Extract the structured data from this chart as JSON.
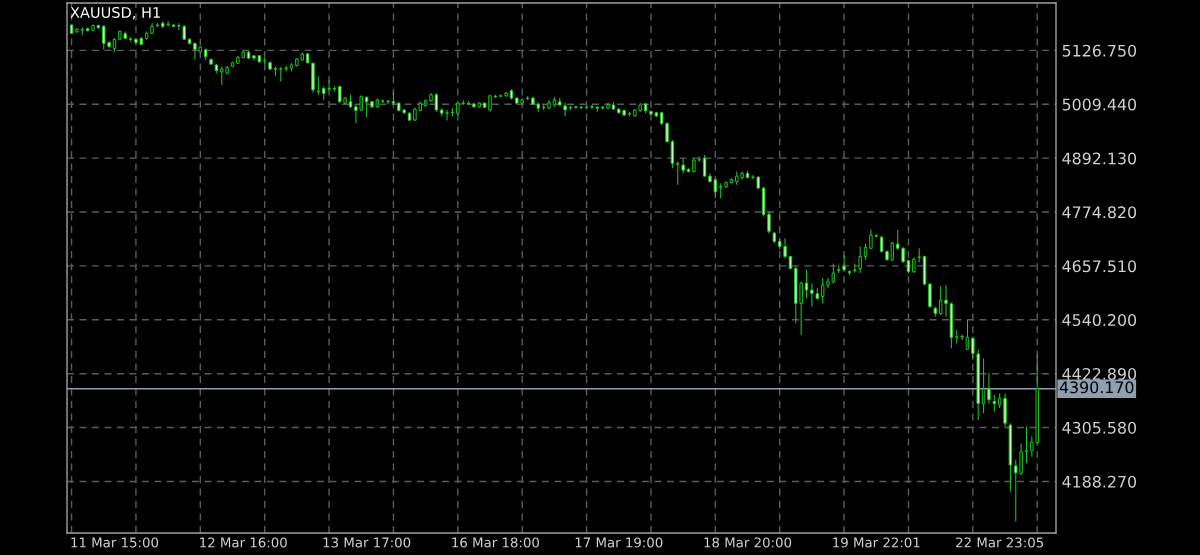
{
  "chart_data": {
    "type": "candlestick",
    "title": "XAUUSD, H1",
    "categories": [
      null,
      null,
      null,
      null,
      null,
      null,
      null,
      null,
      "11 Mar 15:00",
      null,
      null,
      null,
      null,
      null,
      null,
      null,
      null,
      null,
      null,
      null,
      null,
      null,
      null,
      null,
      null,
      null,
      null,
      null,
      null,
      null,
      null,
      null,
      "12 Mar 16:00",
      null,
      null,
      null,
      null,
      null,
      null,
      null,
      null,
      null,
      null,
      null,
      null,
      null,
      null,
      null,
      null,
      null,
      null,
      null,
      null,
      null,
      null,
      "13 Mar 17:00",
      null,
      null,
      null,
      null,
      null,
      null,
      null,
      null,
      null,
      null,
      null,
      null,
      null,
      null,
      null,
      null,
      null,
      null,
      null,
      null,
      null,
      null,
      null,
      "16 Mar 18:00",
      null,
      null,
      null,
      null,
      null,
      null,
      null,
      null,
      null,
      null,
      null,
      null,
      null,
      null,
      null,
      null,
      null,
      null,
      null,
      null,
      null,
      null,
      "17 Mar 19:00",
      null,
      null,
      null,
      null,
      null,
      null,
      null,
      null,
      null,
      null,
      null,
      null,
      null,
      null,
      null,
      null,
      null,
      null,
      null,
      null,
      null,
      null,
      null,
      "18 Mar 20:00",
      null,
      null,
      null,
      null,
      null,
      null,
      null,
      null,
      null,
      null,
      null,
      null,
      null,
      null,
      null,
      null,
      null,
      null,
      null,
      null,
      null,
      null,
      null,
      "19 Mar 22:01",
      null,
      null,
      null,
      null,
      null,
      null,
      null,
      null,
      null,
      null,
      null,
      null,
      null,
      null,
      null,
      null,
      null,
      null,
      null,
      null,
      null,
      null,
      "22 Mar 23:05",
      null,
      null,
      null,
      null,
      null,
      null,
      null
    ],
    "ohlc": [
      [
        5182,
        5184,
        5163,
        5164
      ],
      [
        5167,
        5175,
        5166,
        5173
      ],
      [
        5171,
        5177,
        5160,
        5172
      ],
      [
        5174,
        5176,
        5168,
        5170
      ],
      [
        5171,
        5183,
        5170,
        5181
      ],
      [
        5181,
        5183,
        5174,
        5176
      ],
      [
        5179,
        5182,
        5129,
        5142
      ],
      [
        5144,
        5146,
        5131,
        5135
      ],
      [
        5131,
        5153,
        5124,
        5151
      ],
      [
        5151,
        5170,
        5150,
        5168
      ],
      [
        5163,
        5168,
        5151,
        5153
      ],
      [
        5152,
        5155,
        5146,
        5151
      ],
      [
        5151,
        5153,
        5142,
        5144
      ],
      [
        5153,
        5155,
        5138,
        5140
      ],
      [
        5153,
        5168,
        5150,
        5164
      ],
      [
        5164,
        5186,
        5163,
        5179
      ],
      [
        5181,
        5187,
        5177,
        5182
      ],
      [
        5186,
        5190,
        5175,
        5179
      ],
      [
        5183,
        5190,
        5179,
        5184
      ],
      [
        5182,
        5184,
        5177,
        5179
      ],
      [
        5180,
        5186,
        5171,
        5181
      ],
      [
        5179,
        5182,
        5150,
        5151
      ],
      [
        5151,
        5153,
        5140,
        5142
      ],
      [
        5142,
        5144,
        5107,
        5129
      ],
      [
        5124,
        5136,
        5122,
        5134
      ],
      [
        5128,
        5131,
        5106,
        5113
      ],
      [
        5107,
        5109,
        5095,
        5097
      ],
      [
        5095,
        5097,
        5077,
        5083
      ],
      [
        5080,
        5092,
        5052,
        5086
      ],
      [
        5077,
        5093,
        5075,
        5090
      ],
      [
        5092,
        5102,
        5090,
        5100
      ],
      [
        5099,
        5115,
        5097,
        5112
      ],
      [
        5111,
        5126,
        5110,
        5123
      ],
      [
        5123,
        5126,
        5108,
        5110
      ],
      [
        5115,
        5117,
        5105,
        5110
      ],
      [
        5115,
        5117,
        5100,
        5102
      ],
      [
        5104,
        5110,
        5097,
        5105
      ],
      [
        5100,
        5103,
        5084,
        5086
      ],
      [
        5087,
        5092,
        5071,
        5086
      ],
      [
        5086,
        5090,
        5059,
        5087
      ],
      [
        5087,
        5093,
        5081,
        5088
      ],
      [
        5088,
        5099,
        5081,
        5095
      ],
      [
        5094,
        5110,
        5092,
        5108
      ],
      [
        5106,
        5122,
        5105,
        5119
      ],
      [
        5119,
        5121,
        5099,
        5100
      ],
      [
        5099,
        5100,
        5035,
        5041
      ],
      [
        5037,
        5070,
        5030,
        5038
      ],
      [
        5044,
        5048,
        5019,
        5033
      ],
      [
        5043,
        5062,
        5039,
        5044
      ],
      [
        5044,
        5048,
        5038,
        5043
      ],
      [
        5048,
        5050,
        5013,
        5015
      ],
      [
        5012,
        5025,
        5010,
        5023
      ],
      [
        5015,
        5030,
        5001,
        5004
      ],
      [
        5004,
        5008,
        4968,
        4996
      ],
      [
        4997,
        5029,
        4995,
        5026
      ],
      [
        5025,
        5026,
        4981,
        5015
      ],
      [
        5015,
        5017,
        5001,
        5004
      ],
      [
        5004,
        5022,
        5002,
        5019
      ],
      [
        5016,
        5020,
        5012,
        5017
      ],
      [
        5016,
        5019,
        5010,
        5015
      ],
      [
        5015,
        5037,
        5008,
        5012
      ],
      [
        5012,
        5014,
        4994,
        4996
      ],
      [
        4997,
        4999,
        4989,
        4991
      ],
      [
        4990,
        4992,
        4973,
        4975
      ],
      [
        4975,
        5002,
        4973,
        4999
      ],
      [
        4996,
        5015,
        4995,
        5012
      ],
      [
        5006,
        5020,
        5004,
        5017
      ],
      [
        5017,
        5034,
        5015,
        5030
      ],
      [
        5030,
        5034,
        4993,
        4997
      ],
      [
        4997,
        5001,
        4983,
        4990
      ],
      [
        4990,
        4997,
        4974,
        4991
      ],
      [
        4991,
        5001,
        4983,
        4992
      ],
      [
        4990,
        5013,
        4986,
        5012
      ],
      [
        5012,
        5019,
        5008,
        5011
      ],
      [
        5011,
        5016,
        5008,
        5012
      ],
      [
        5010,
        5013,
        5002,
        5004
      ],
      [
        5004,
        5014,
        5002,
        5012
      ],
      [
        5012,
        5014,
        5001,
        5003
      ],
      [
        4997,
        5030,
        4993,
        5028
      ],
      [
        5027,
        5030,
        5023,
        5026
      ],
      [
        5027,
        5031,
        5024,
        5028
      ],
      [
        5028,
        5036,
        5026,
        5034
      ],
      [
        5039,
        5042,
        5020,
        5023
      ],
      [
        5023,
        5025,
        5009,
        5012
      ],
      [
        5012,
        5022,
        5009,
        5019
      ],
      [
        5022,
        5027,
        5019,
        5023
      ],
      [
        5023,
        5025,
        5008,
        5010
      ],
      [
        5010,
        5013,
        4993,
        5001
      ],
      [
        5002,
        5008,
        4997,
        5003
      ],
      [
        5001,
        5019,
        4999,
        5013
      ],
      [
        5008,
        5026,
        5004,
        5019
      ],
      [
        5015,
        5023,
        5006,
        5008
      ],
      [
        5006,
        5012,
        4983,
        4997
      ],
      [
        5003,
        5006,
        4997,
        5002
      ],
      [
        5003,
        5007,
        5000,
        5004
      ],
      [
        5003,
        5006,
        4999,
        5002
      ],
      [
        5002,
        5006,
        4999,
        5003
      ],
      [
        5003,
        5008,
        5000,
        5005
      ],
      [
        5003,
        5006,
        4993,
        5001
      ],
      [
        5001,
        5006,
        4998,
        5003
      ],
      [
        5001,
        5013,
        4999,
        5008
      ],
      [
        5008,
        5015,
        4997,
        4999
      ],
      [
        4999,
        5001,
        4989,
        4991
      ],
      [
        4996,
        4998,
        4984,
        4986
      ],
      [
        4988,
        4993,
        4983,
        4989
      ],
      [
        4984,
        4999,
        4982,
        4997
      ],
      [
        4996,
        5013,
        4993,
        5008
      ],
      [
        5010,
        5012,
        4990,
        4996
      ],
      [
        4994,
        4996,
        4986,
        4988
      ],
      [
        4991,
        4993,
        4981,
        4984
      ],
      [
        4991,
        4993,
        4964,
        4968
      ],
      [
        4968,
        4970,
        4926,
        4928
      ],
      [
        4928,
        4932,
        4870,
        4881
      ],
      [
        4880,
        4885,
        4834,
        4879
      ],
      [
        4877,
        4892,
        4859,
        4866
      ],
      [
        4868,
        4870,
        4861,
        4863
      ],
      [
        4863,
        4892,
        4861,
        4888
      ],
      [
        4888,
        4896,
        4885,
        4889
      ],
      [
        4892,
        4899,
        4852,
        4853
      ],
      [
        4853,
        4859,
        4839,
        4841
      ],
      [
        4845,
        4848,
        4805,
        4819
      ],
      [
        4830,
        4837,
        4805,
        4829
      ],
      [
        4830,
        4841,
        4828,
        4839
      ],
      [
        4839,
        4848,
        4837,
        4846
      ],
      [
        4841,
        4863,
        4834,
        4853
      ],
      [
        4850,
        4863,
        4845,
        4859
      ],
      [
        4859,
        4865,
        4848,
        4850
      ],
      [
        4851,
        4855,
        4847,
        4850
      ],
      [
        4851,
        4853,
        4825,
        4827
      ],
      [
        4827,
        4830,
        4765,
        4770
      ],
      [
        4770,
        4775,
        4728,
        4733
      ],
      [
        4729,
        4732,
        4707,
        4711
      ],
      [
        4711,
        4718,
        4694,
        4700
      ],
      [
        4700,
        4718,
        4674,
        4678
      ],
      [
        4678,
        4680,
        4650,
        4652
      ],
      [
        4652,
        4656,
        4533,
        4576
      ],
      [
        4576,
        4623,
        4507,
        4620
      ],
      [
        4620,
        4649,
        4587,
        4605
      ],
      [
        4605,
        4620,
        4569,
        4598
      ],
      [
        4597,
        4609,
        4584,
        4587
      ],
      [
        4591,
        4631,
        4576,
        4616
      ],
      [
        4616,
        4631,
        4609,
        4623
      ],
      [
        4623,
        4663,
        4620,
        4642
      ],
      [
        4649,
        4660,
        4642,
        4648
      ],
      [
        4657,
        4681,
        4645,
        4649
      ],
      [
        4645,
        4648,
        4638,
        4643
      ],
      [
        4647,
        4662,
        4643,
        4649
      ],
      [
        4652,
        4700,
        4642,
        4678
      ],
      [
        4678,
        4706,
        4671,
        4698
      ],
      [
        4696,
        4737,
        4694,
        4725
      ],
      [
        4723,
        4727,
        4720,
        4722
      ],
      [
        4720,
        4723,
        4687,
        4689
      ],
      [
        4689,
        4691,
        4669,
        4671
      ],
      [
        4671,
        4710,
        4668,
        4707
      ],
      [
        4705,
        4736,
        4692,
        4696
      ],
      [
        4696,
        4698,
        4664,
        4667
      ],
      [
        4669,
        4671,
        4642,
        4645
      ],
      [
        4645,
        4676,
        4642,
        4672
      ],
      [
        4676,
        4696,
        4665,
        4677
      ],
      [
        4678,
        4680,
        4615,
        4618
      ],
      [
        4618,
        4620,
        4566,
        4569
      ],
      [
        4565,
        4569,
        4547,
        4554
      ],
      [
        4554,
        4613,
        4551,
        4583
      ],
      [
        4583,
        4616,
        4547,
        4576
      ],
      [
        4575,
        4578,
        4478,
        4502
      ],
      [
        4502,
        4518,
        4489,
        4503
      ],
      [
        4503,
        4508,
        4496,
        4504
      ],
      [
        4476,
        4540,
        4475,
        4502
      ],
      [
        4500,
        4504,
        4453,
        4467
      ],
      [
        4466,
        4475,
        4322,
        4358
      ],
      [
        4357,
        4456,
        4337,
        4389
      ],
      [
        4389,
        4424,
        4358,
        4366
      ],
      [
        4362,
        4377,
        4340,
        4358
      ],
      [
        4355,
        4380,
        4348,
        4369
      ],
      [
        4369,
        4380,
        4308,
        4315
      ],
      [
        4311,
        4315,
        4166,
        4224
      ],
      [
        4222,
        4235,
        4101,
        4207
      ],
      [
        4206,
        4271,
        4202,
        4253
      ],
      [
        4253,
        4308,
        4228,
        4255
      ],
      [
        4255,
        4286,
        4242,
        4273
      ],
      [
        4273,
        4464,
        4271,
        4390.17
      ]
    ],
    "color": "#1ec81e",
    "colors": [
      "#c8f5c0",
      "#000000",
      "#000000",
      "#c8f5c0",
      "#000000",
      "#c8f5c0",
      "#c8f5c0",
      "#c8f5c0",
      "#000000",
      "#000000",
      "#c8f5c0",
      "#c8f5c0",
      "#c8f5c0",
      "#c8f5c0",
      "#000000",
      "#000000",
      "#000000",
      "#c8f5c0",
      "#000000",
      "#c8f5c0",
      "#000000",
      "#c8f5c0",
      "#c8f5c0",
      "#c8f5c0",
      "#000000",
      "#c8f5c0",
      "#c8f5c0",
      "#c8f5c0",
      "#000000",
      "#000000",
      "#000000",
      "#000000",
      "#000000",
      "#c8f5c0",
      "#c8f5c0",
      "#c8f5c0",
      "#000000",
      "#c8f5c0",
      "#c8f5c0",
      "#000000",
      "#000000",
      "#000000",
      "#000000",
      "#000000",
      "#c8f5c0",
      "#c8f5c0",
      "#000000",
      "#c8f5c0",
      "#000000",
      "#c8f5c0",
      "#c8f5c0",
      "#000000",
      "#c8f5c0",
      "#c8f5c0",
      "#000000",
      "#c8f5c0",
      "#c8f5c0",
      "#000000",
      "#000000",
      "#c8f5c0",
      "#c8f5c0",
      "#c8f5c0",
      "#c8f5c0",
      "#c8f5c0",
      "#000000",
      "#000000",
      "#000000",
      "#000000",
      "#c8f5c0",
      "#c8f5c0",
      "#000000",
      "#000000",
      "#000000",
      "#c8f5c0",
      "#000000",
      "#c8f5c0",
      "#000000",
      "#c8f5c0",
      "#000000",
      "#c8f5c0",
      "#000000",
      "#000000",
      "#c8f5c0",
      "#c8f5c0",
      "#000000",
      "#000000",
      "#c8f5c0",
      "#c8f5c0",
      "#000000",
      "#000000",
      "#000000",
      "#c8f5c0",
      "#c8f5c0",
      "#c8f5c0",
      "#000000",
      "#c8f5c0",
      "#000000",
      "#000000",
      "#c8f5c0",
      "#000000",
      "#000000",
      "#c8f5c0",
      "#c8f5c0",
      "#c8f5c0",
      "#000000",
      "#000000",
      "#000000",
      "#c8f5c0",
      "#c8f5c0",
      "#c8f5c0",
      "#c8f5c0",
      "#c8f5c0",
      "#c8f5c0",
      "#c8f5c0",
      "#c8f5c0",
      "#c8f5c0",
      "#000000",
      "#000000",
      "#c8f5c0",
      "#c8f5c0",
      "#c8f5c0",
      "#c8f5c0",
      "#000000",
      "#000000",
      "#000000",
      "#000000",
      "#c8f5c0",
      "#c8f5c0",
      "#c8f5c0",
      "#c8f5c0",
      "#c8f5c0",
      "#c8f5c0",
      "#c8f5c0",
      "#c8f5c0",
      "#c8f5c0",
      "#c8f5c0",
      "#000000",
      "#c8f5c0",
      "#c8f5c0",
      "#c8f5c0",
      "#000000",
      "#000000",
      "#000000",
      "#c8f5c0",
      "#c8f5c0",
      "#c8f5c0",
      "#000000",
      "#000000",
      "#000000",
      "#000000",
      "#c8f5c0",
      "#c8f5c0",
      "#c8f5c0",
      "#000000",
      "#c8f5c0",
      "#c8f5c0",
      "#c8f5c0",
      "#000000",
      "#000000",
      "#c8f5c0",
      "#c8f5c0",
      "#c8f5c0",
      "#000000",
      "#c8f5c0",
      "#c8f5c0",
      "#000000",
      "#000000",
      "#000000",
      "#c8f5c0",
      "#c8f5c0",
      "#000000",
      "#c8f5c0",
      "#c8f5c0",
      "#000000",
      "#c8f5c0",
      "#c8f5c0",
      "#c8f5c0",
      "#000000",
      "#000000",
      "#000000",
      "#000000"
    ],
    "ylim": [
      4076,
      5230
    ],
    "yticks": [
      {
        "value": 4188.27,
        "label": "4188.270"
      },
      {
        "value": 4305.58,
        "label": "4305.580"
      },
      {
        "value": 4422.89,
        "label": "4422.890"
      },
      {
        "value": 4540.2,
        "label": "4540.200"
      },
      {
        "value": 4657.51,
        "label": "4657.510"
      },
      {
        "value": 4774.82,
        "label": "4774.820"
      },
      {
        "value": 4892.13,
        "label": "4892.130"
      },
      {
        "value": 5009.44,
        "label": "5009.440"
      },
      {
        "value": 5126.75,
        "label": "5126.750"
      }
    ],
    "grid": true,
    "ref_lines": [
      {
        "axis": "y",
        "value": 4390.17,
        "label": "4390.170",
        "color": "#8e9fb2"
      }
    ]
  }
}
